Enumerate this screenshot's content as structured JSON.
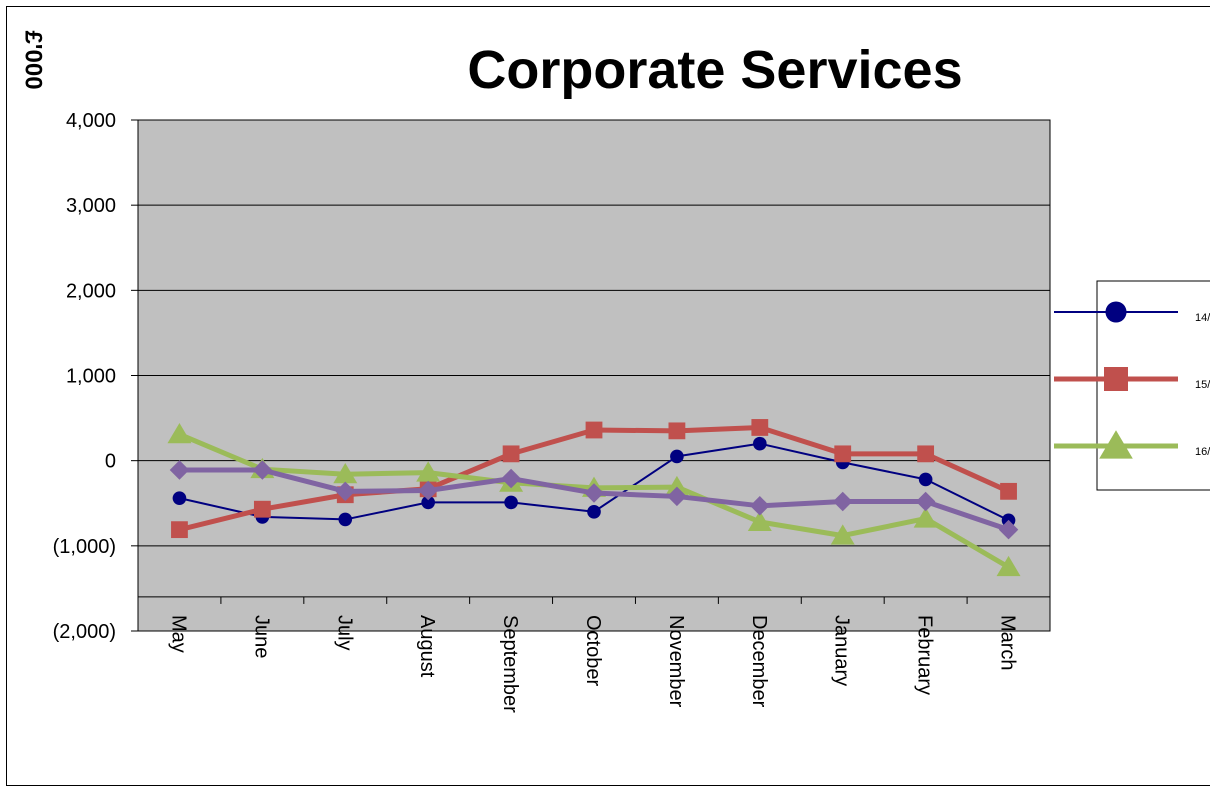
{
  "chart_data": {
    "type": "line",
    "title": "Corporate Services",
    "ylabel": "£'000",
    "xlabel": "",
    "ylim": [
      -2000,
      4000
    ],
    "yticks": [
      4000,
      3000,
      2000,
      1000,
      0,
      -1000,
      -2000
    ],
    "ytick_labels": [
      "4,000",
      "3,000",
      "2,000",
      "1,000",
      "0",
      "(1,000)",
      "(2,000)"
    ],
    "categories": [
      "May",
      "June",
      "July",
      "August",
      "September",
      "October",
      "November",
      "December",
      "January",
      "February",
      "March"
    ],
    "grid": true,
    "plot_background": "#c0c0c0",
    "legend_position": "right",
    "series": [
      {
        "name": "14/",
        "color": "#000080",
        "marker": "circle",
        "values": [
          -440,
          -660,
          -690,
          -490,
          -490,
          -600,
          50,
          200,
          -20,
          -220,
          -700
        ]
      },
      {
        "name": "15/",
        "color": "#c0504d",
        "marker": "square",
        "values": [
          -810,
          -570,
          -400,
          -330,
          80,
          360,
          350,
          390,
          80,
          80,
          -360
        ]
      },
      {
        "name": "16/",
        "color": "#9bbb59",
        "marker": "triangle",
        "values": [
          310,
          -100,
          -160,
          -140,
          -260,
          -320,
          -310,
          -720,
          -880,
          -680,
          -1250
        ]
      },
      {
        "name": "",
        "color": "#8064a2",
        "marker": "diamond",
        "values": [
          -110,
          -110,
          -360,
          -350,
          -210,
          -380,
          -420,
          -530,
          -480,
          -480,
          -810
        ]
      }
    ]
  }
}
